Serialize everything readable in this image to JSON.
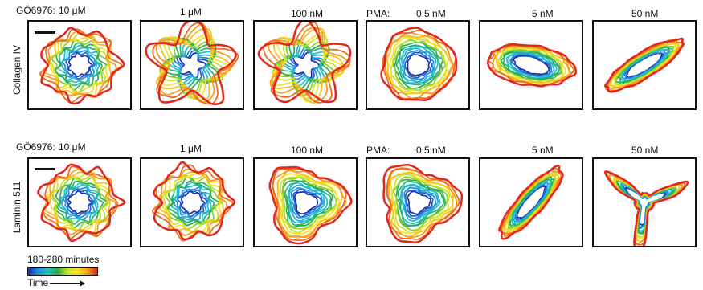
{
  "rows": [
    {
      "label": "Collagen IV",
      "headers": [
        "GÖ6976:",
        "10 μM",
        "1 μM",
        "100 nM",
        "PMA:",
        "0.5 nM",
        "5 nM",
        "50 nM"
      ]
    },
    {
      "label": "Laminin 511",
      "headers": [
        "GÖ6976:",
        "10 μM",
        "1 μM",
        "100 nM",
        "PMA:",
        "0.5 nM",
        "5 nM",
        "50 nM"
      ]
    }
  ],
  "legend": {
    "range_label": "180-280 minutes",
    "axis_label": "Time"
  },
  "colors": {
    "time_start": "#1a2fb0",
    "time_mid": "#27b04a",
    "time_end": "#e3261c",
    "frame": "#111111"
  }
}
